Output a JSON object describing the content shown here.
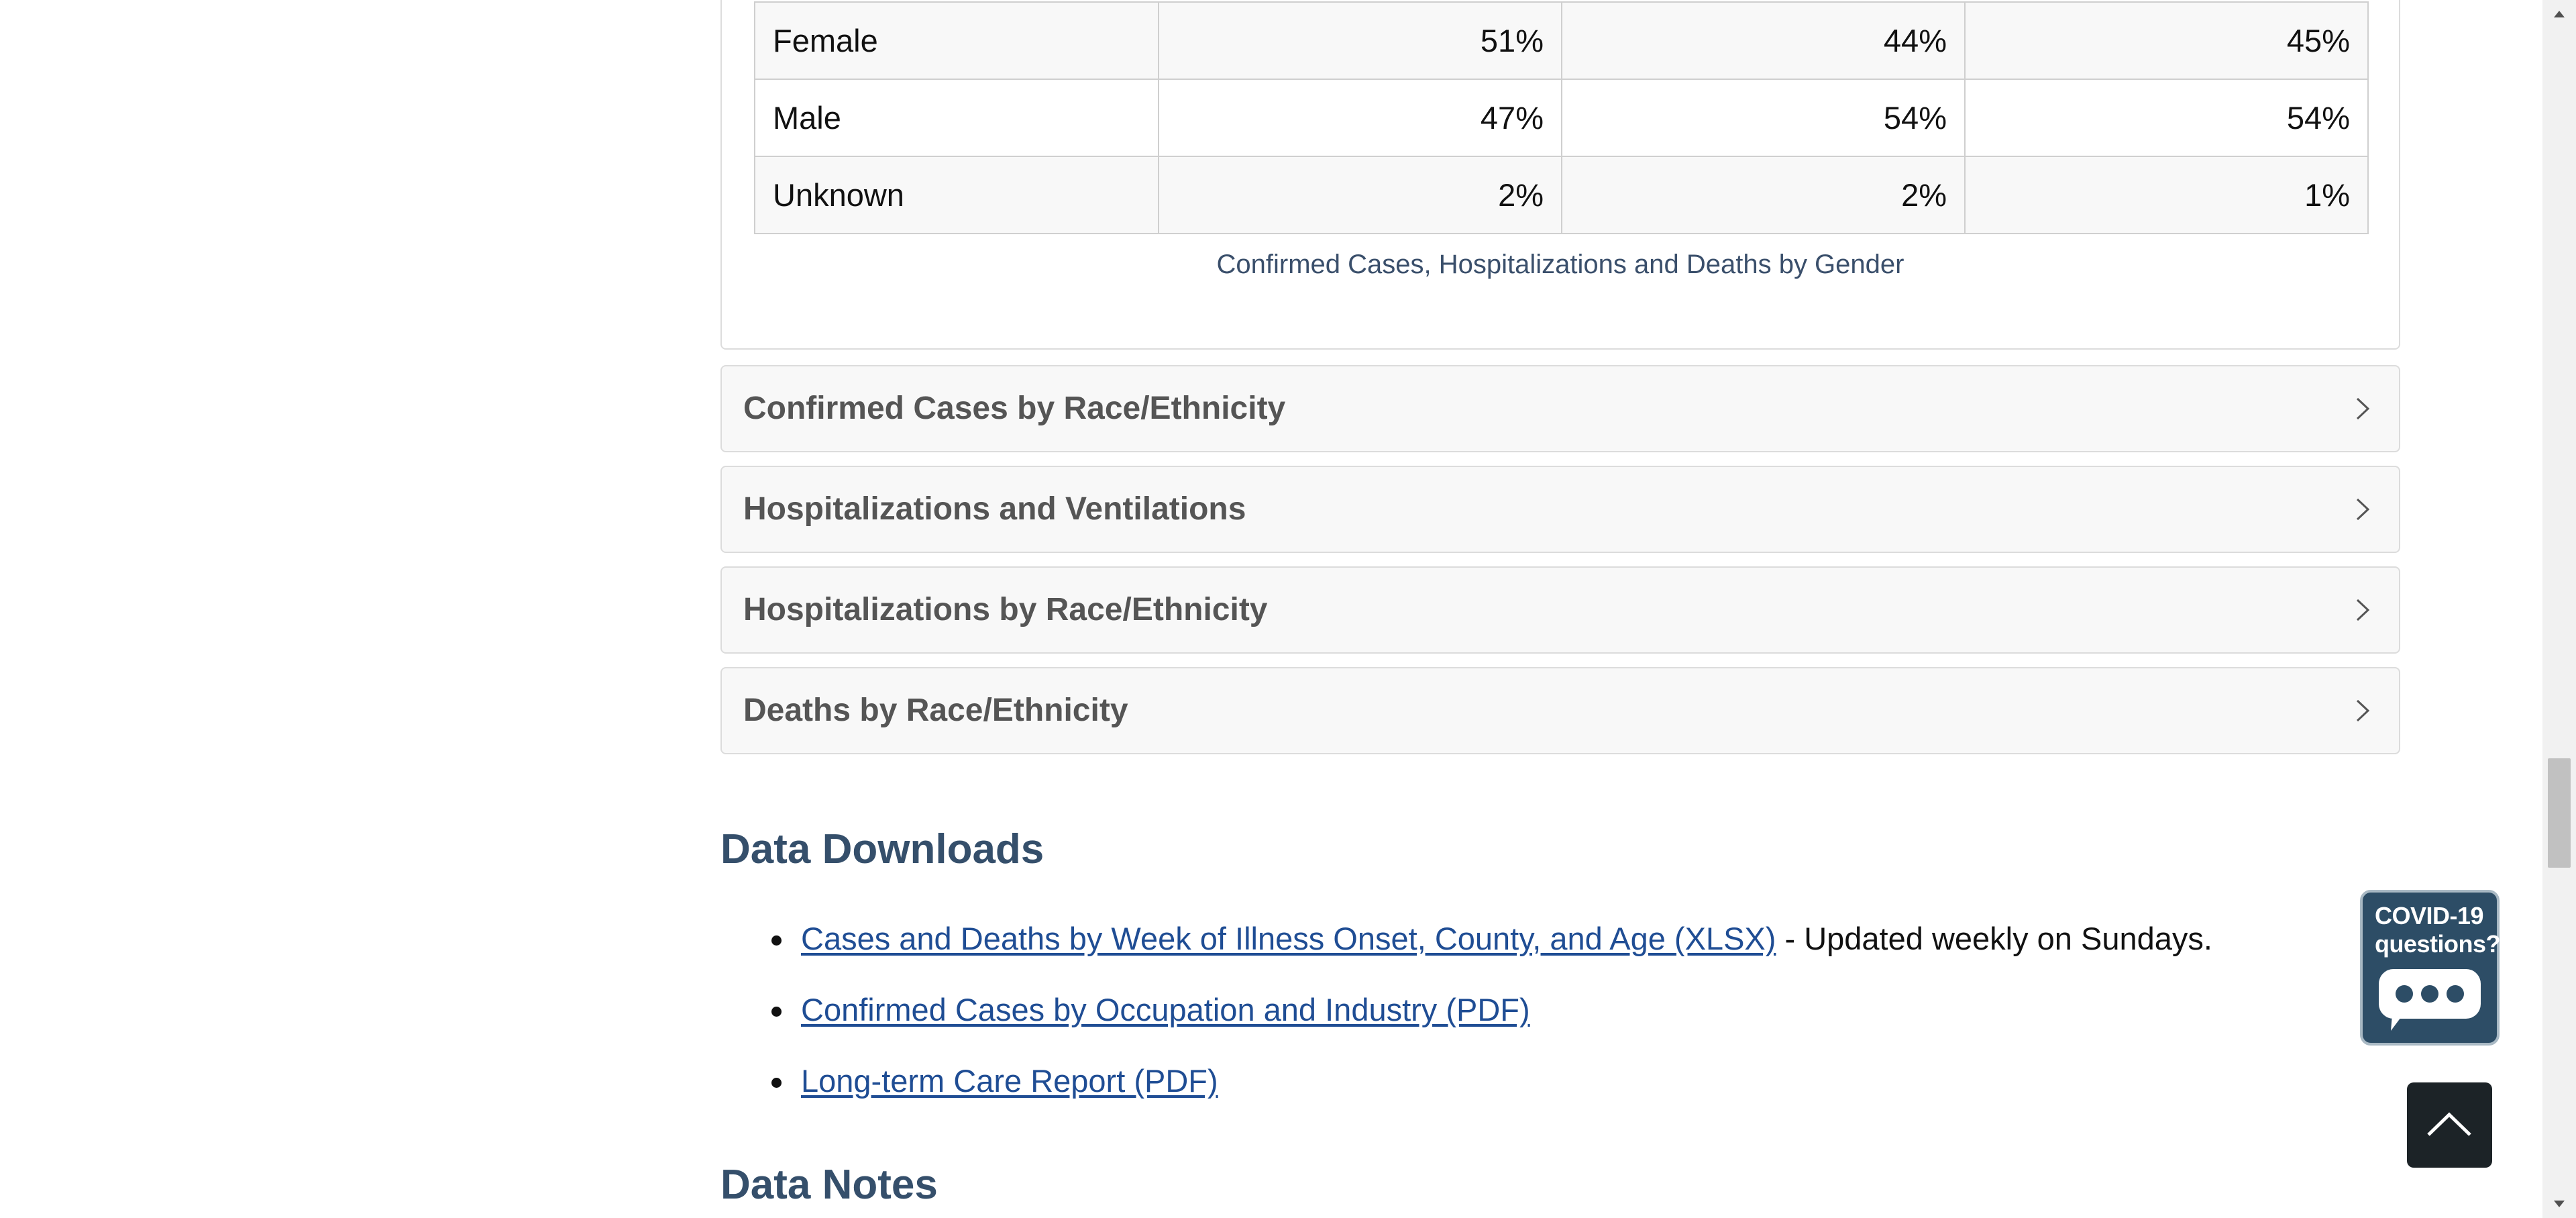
{
  "gender_table": {
    "rows": [
      {
        "label": "Female",
        "cases": "51%",
        "hospitalizations": "44%",
        "deaths": "45%"
      },
      {
        "label": "Male",
        "cases": "47%",
        "hospitalizations": "54%",
        "deaths": "54%"
      },
      {
        "label": "Unknown",
        "cases": "2%",
        "hospitalizations": "2%",
        "deaths": "1%"
      }
    ],
    "caption": "Confirmed Cases, Hospitalizations and Deaths by Gender"
  },
  "accordions": [
    {
      "title": "Confirmed Cases by Race/Ethnicity",
      "icon": "chevron-right-icon"
    },
    {
      "title": "Hospitalizations and Ventilations",
      "icon": "chevron-right-icon"
    },
    {
      "title": "Hospitalizations by Race/Ethnicity",
      "icon": "chevron-right-icon"
    },
    {
      "title": "Deaths by Race/Ethnicity",
      "icon": "chevron-right-icon"
    }
  ],
  "data_downloads": {
    "heading": "Data Downloads",
    "items": [
      {
        "link": "Cases and Deaths by Week of Illness Onset, County, and Age (XLSX)",
        "note": " - Updated weekly on Sundays."
      },
      {
        "link": "Confirmed Cases by Occupation and Industry (PDF)",
        "note": ""
      },
      {
        "link": "Long-term Care Report (PDF)",
        "note": ""
      }
    ]
  },
  "data_notes": {
    "heading": "Data Notes"
  },
  "widgets": {
    "covid_line1": "COVID-19",
    "covid_line2": "questions?",
    "covid_icon": "chat-bubble-icon",
    "back_to_top_icon": "chevron-up-icon"
  },
  "colors": {
    "link": "#1f4d94",
    "heading": "#354f6b",
    "widget_bg": "#2d4d66",
    "top_button_bg": "#1c2327"
  }
}
